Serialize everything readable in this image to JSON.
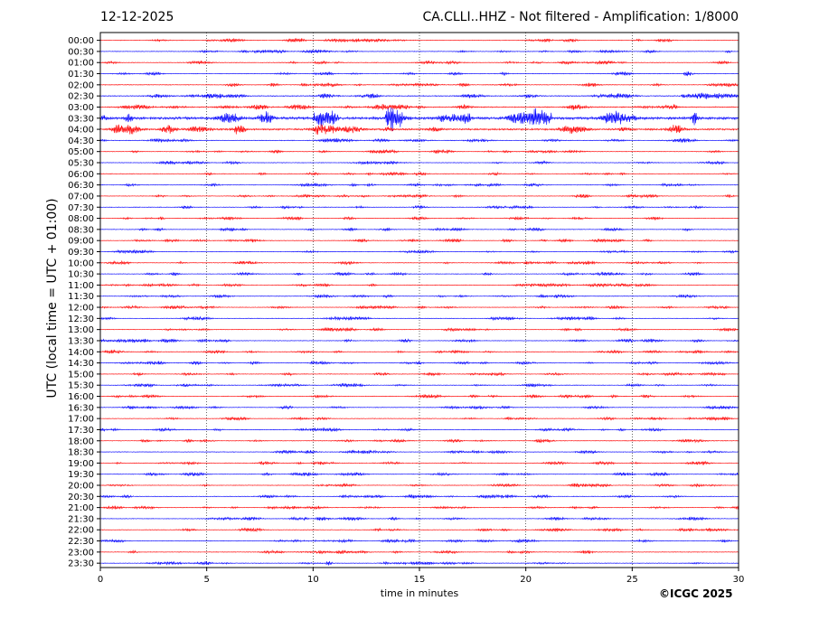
{
  "header": {
    "date": "12-12-2025",
    "station_title": "CA.CLLI..HHZ - Not filtered - Amplification: 1/8000"
  },
  "copyright": "©ICGC 2025",
  "chart_data": {
    "type": "line",
    "title": "CA.CLLI..HHZ - Not filtered - Amplification: 1/8000",
    "date": "12-12-2025",
    "xlabel": "time in minutes",
    "ylabel": "UTC (local time = UTC + 01:00)",
    "xlim": [
      0,
      30
    ],
    "x_ticks": [
      0,
      5,
      10,
      15,
      20,
      25,
      30
    ],
    "grid": "vertical dotted lines every 5 minutes",
    "row_labels": [
      "00:00",
      "00:30",
      "01:00",
      "01:30",
      "02:00",
      "02:30",
      "03:00",
      "03:30",
      "04:00",
      "04:30",
      "05:00",
      "05:30",
      "06:00",
      "06:30",
      "07:00",
      "07:30",
      "08:00",
      "08:30",
      "09:00",
      "09:30",
      "10:00",
      "10:30",
      "11:00",
      "11:30",
      "12:00",
      "12:30",
      "13:00",
      "13:30",
      "14:00",
      "14:30",
      "15:00",
      "15:30",
      "16:00",
      "16:30",
      "17:00",
      "17:30",
      "18:00",
      "18:30",
      "19:00",
      "19:30",
      "20:00",
      "20:30",
      "21:00",
      "21:30",
      "22:00",
      "22:30",
      "23:00",
      "23:30"
    ],
    "trace_colors": [
      "#ff0000",
      "#0000ff"
    ],
    "trace_amplitude": {
      "default": 2.2,
      "02:00": 2.5,
      "02:30": 3.2,
      "03:00": 3.5,
      "03:30": 9,
      "04:00": 6,
      "04:30": 2.5
    },
    "events": [
      {
        "row": "02:30",
        "start_min": 27.3,
        "end_min": 30,
        "amplitude": 4.5
      },
      {
        "row": "03:30",
        "start_min": 13.4,
        "end_min": 14.2,
        "amplitude": 17
      },
      {
        "row": "03:30",
        "start_min": 10.0,
        "end_min": 11.2,
        "amplitude": 12
      },
      {
        "row": "03:30",
        "start_min": 16.8,
        "end_min": 17.4,
        "amplitude": 10
      },
      {
        "row": "03:30",
        "start_min": 19.6,
        "end_min": 21.2,
        "amplitude": 12
      },
      {
        "row": "01:30",
        "start_min": 27.4,
        "end_min": 27.8,
        "amplitude": 3.5
      },
      {
        "row": "23:30",
        "start_min": 10.6,
        "end_min": 10.9,
        "amplitude": 4
      }
    ]
  }
}
